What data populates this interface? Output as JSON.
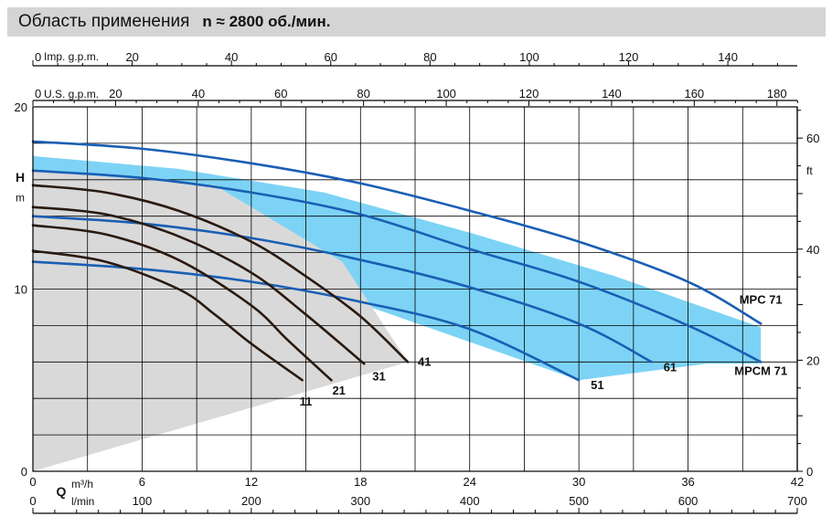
{
  "header": {
    "title": "Область применения",
    "speed": "n ≈ 2800 об./мин."
  },
  "chart_data": {
    "type": "line",
    "title": "Область применения n ≈ 2800 об./мин.",
    "x_primary": {
      "symbol": "Q",
      "unit": "m³/h",
      "range": [
        0,
        42
      ],
      "ticks": [
        0,
        6,
        12,
        18,
        24,
        30,
        36,
        42
      ]
    },
    "x_lmin": {
      "unit": "l/min",
      "range": [
        0,
        700
      ],
      "ticks": [
        0,
        100,
        200,
        300,
        400,
        500,
        600,
        700
      ]
    },
    "x_usgpm": {
      "unit": "U.S. g.p.m.",
      "ticks": [
        0,
        20,
        40,
        60,
        80,
        100,
        120,
        140,
        160,
        180
      ]
    },
    "x_impgpm": {
      "unit": "Imp. g.p.m.",
      "ticks": [
        0,
        20,
        40,
        60,
        80,
        100,
        120,
        140
      ]
    },
    "y_left": {
      "symbol": "H",
      "unit": "m",
      "range": [
        0,
        20
      ],
      "ticks": [
        0,
        10,
        20
      ]
    },
    "y_right": {
      "unit": "ft",
      "ticks": [
        0,
        20,
        40,
        60
      ]
    },
    "grid": true,
    "areas": [
      {
        "name": "MPC",
        "color": "#7dd3f5",
        "points": [
          [
            0,
            17.3
          ],
          [
            8,
            16.6
          ],
          [
            16,
            15.3
          ],
          [
            24,
            13.1
          ],
          [
            32,
            10.7
          ],
          [
            40,
            7.9
          ],
          [
            40,
            5.9
          ],
          [
            37,
            5.9
          ],
          [
            30,
            5.0
          ],
          [
            18,
            9.2
          ],
          [
            8,
            12.5
          ],
          [
            0,
            14.0
          ]
        ]
      },
      {
        "name": "MPCM",
        "color": "#d9d9d9",
        "points": [
          [
            0,
            16.5
          ],
          [
            10,
            15.7
          ],
          [
            17,
            11.5
          ],
          [
            20.6,
            6.0
          ],
          [
            0,
            0
          ]
        ]
      }
    ],
    "series": [
      {
        "name": "MPC 71",
        "color": "#1a5fb4",
        "label_at": [
          40,
          9.2
        ],
        "points": [
          [
            0,
            18.1
          ],
          [
            6,
            17.7
          ],
          [
            12,
            16.9
          ],
          [
            18,
            15.8
          ],
          [
            24,
            14.3
          ],
          [
            30,
            12.6
          ],
          [
            36,
            10.4
          ],
          [
            40,
            8.1
          ]
        ]
      },
      {
        "name": "MPCM 71",
        "color": "#1a5fb4",
        "label_at": [
          40,
          5.3
        ],
        "points": [
          [
            0,
            16.5
          ],
          [
            6,
            16.1
          ],
          [
            12,
            15.3
          ],
          [
            18,
            14.1
          ],
          [
            24,
            12.2
          ],
          [
            30,
            10.4
          ],
          [
            36,
            8.0
          ],
          [
            40,
            6.0
          ]
        ]
      },
      {
        "name": "61",
        "color": "#1a5fb4",
        "label_at": [
          34.5,
          5.5
        ],
        "points": [
          [
            0,
            14.0
          ],
          [
            6,
            13.6
          ],
          [
            12,
            12.8
          ],
          [
            18,
            11.6
          ],
          [
            24,
            10.1
          ],
          [
            30,
            8.1
          ],
          [
            34,
            6.0
          ]
        ]
      },
      {
        "name": "51",
        "color": "#1a5fb4",
        "label_at": [
          30.5,
          4.5
        ],
        "points": [
          [
            0,
            11.5
          ],
          [
            6,
            11.1
          ],
          [
            12,
            10.4
          ],
          [
            18,
            9.3
          ],
          [
            24,
            7.8
          ],
          [
            30,
            5.0
          ]
        ]
      },
      {
        "name": "41",
        "color": "#2a1a10",
        "label_at": [
          21,
          5.8
        ],
        "points": [
          [
            0,
            15.7
          ],
          [
            4,
            15.3
          ],
          [
            8,
            14.3
          ],
          [
            12,
            12.6
          ],
          [
            15,
            10.7
          ],
          [
            18,
            8.5
          ],
          [
            20.6,
            6.0
          ]
        ]
      },
      {
        "name": "31",
        "color": "#2a1a10",
        "label_at": [
          18.5,
          5.0
        ],
        "points": [
          [
            0,
            14.5
          ],
          [
            4,
            14.1
          ],
          [
            8,
            12.9
          ],
          [
            12,
            10.9
          ],
          [
            15,
            8.6
          ],
          [
            18.2,
            5.9
          ]
        ]
      },
      {
        "name": "21",
        "color": "#2a1a10",
        "label_at": [
          16.3,
          4.2
        ],
        "points": [
          [
            0,
            13.5
          ],
          [
            4,
            13.0
          ],
          [
            8,
            11.6
          ],
          [
            12,
            9.1
          ],
          [
            14,
            7.2
          ],
          [
            16.4,
            5.0
          ]
        ]
      },
      {
        "name": "11",
        "color": "#2a1a10",
        "label_at": [
          14.5,
          3.6
        ],
        "points": [
          [
            0,
            12.1
          ],
          [
            4,
            11.5
          ],
          [
            8,
            10.0
          ],
          [
            10,
            8.6
          ],
          [
            12,
            7.0
          ],
          [
            14.8,
            5.0
          ]
        ]
      }
    ]
  }
}
